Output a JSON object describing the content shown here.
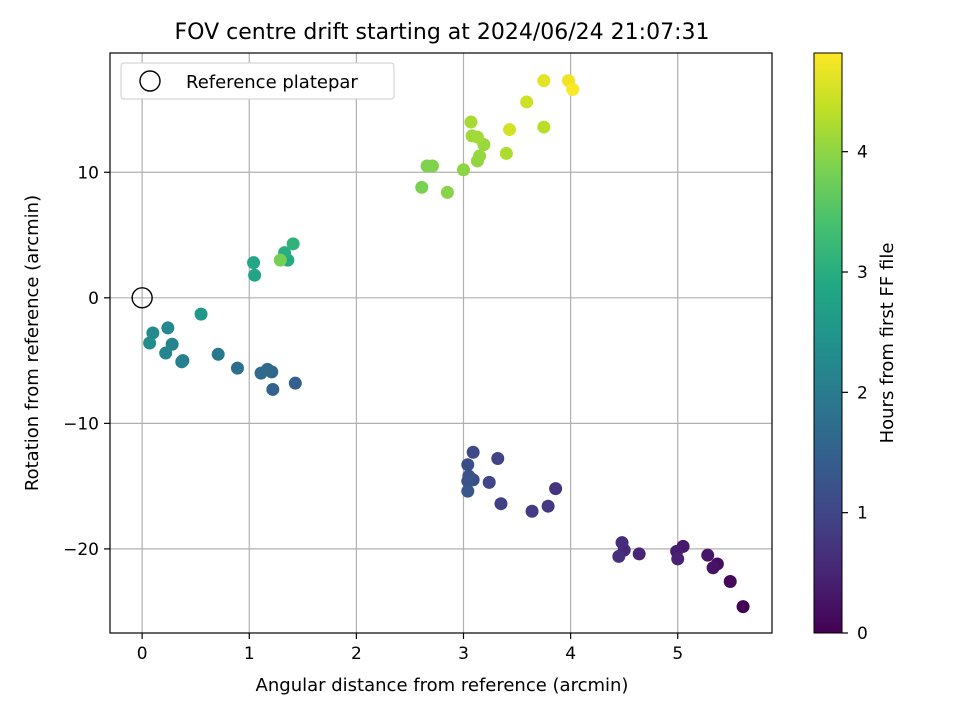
{
  "chart_data": {
    "type": "scatter",
    "title": "FOV centre drift starting at 2024/06/24 21:07:31",
    "xlabel": "Angular distance from reference (arcmin)",
    "ylabel": "Rotation from reference (arcmin)",
    "xlim": [
      -0.3,
      5.88
    ],
    "ylim": [
      -26.7,
      19.5
    ],
    "x_ticks": [
      0,
      1,
      2,
      3,
      4,
      5
    ],
    "y_ticks": [
      -20,
      -10,
      0,
      10
    ],
    "grid": true,
    "legend": {
      "placement": "upper-left",
      "entries": [
        "Reference platepar"
      ]
    },
    "reference_point": {
      "x": 0,
      "y": 0,
      "label": "Reference platepar"
    },
    "colorbar": {
      "label": "Hours from first FF file",
      "range": [
        0,
        4.82
      ],
      "ticks": [
        0,
        1,
        2,
        3,
        4
      ],
      "colormap": "viridis"
    },
    "points": [
      {
        "x": 5.61,
        "y": -24.6,
        "c": 0.02
      },
      {
        "x": 5.49,
        "y": -22.6,
        "c": 0.1
      },
      {
        "x": 5.37,
        "y": -21.2,
        "c": 0.18
      },
      {
        "x": 5.33,
        "y": -21.5,
        "c": 0.25
      },
      {
        "x": 5.28,
        "y": -20.5,
        "c": 0.3
      },
      {
        "x": 5.05,
        "y": -19.8,
        "c": 0.35
      },
      {
        "x": 4.99,
        "y": -20.2,
        "c": 0.4
      },
      {
        "x": 5.0,
        "y": -20.8,
        "c": 0.45
      },
      {
        "x": 4.64,
        "y": -20.4,
        "c": 0.5
      },
      {
        "x": 4.5,
        "y": -20.1,
        "c": 0.55
      },
      {
        "x": 4.48,
        "y": -19.5,
        "c": 0.6
      },
      {
        "x": 4.45,
        "y": -20.6,
        "c": 0.65
      },
      {
        "x": 3.86,
        "y": -15.2,
        "c": 0.72
      },
      {
        "x": 3.79,
        "y": -16.6,
        "c": 0.78
      },
      {
        "x": 3.64,
        "y": -17.0,
        "c": 0.84
      },
      {
        "x": 3.35,
        "y": -16.4,
        "c": 0.9
      },
      {
        "x": 3.32,
        "y": -12.8,
        "c": 0.95
      },
      {
        "x": 3.24,
        "y": -14.7,
        "c": 1.0
      },
      {
        "x": 3.09,
        "y": -12.3,
        "c": 1.05
      },
      {
        "x": 3.09,
        "y": -14.5,
        "c": 1.1
      },
      {
        "x": 3.04,
        "y": -13.3,
        "c": 1.15
      },
      {
        "x": 3.05,
        "y": -14.2,
        "c": 1.2
      },
      {
        "x": 3.04,
        "y": -14.6,
        "c": 1.25
      },
      {
        "x": 3.04,
        "y": -15.4,
        "c": 1.3
      },
      {
        "x": 1.43,
        "y": -6.8,
        "c": 1.45
      },
      {
        "x": 1.22,
        "y": -7.3,
        "c": 1.52
      },
      {
        "x": 1.21,
        "y": -5.9,
        "c": 1.58
      },
      {
        "x": 1.17,
        "y": -5.7,
        "c": 1.63
      },
      {
        "x": 1.11,
        "y": -6.0,
        "c": 1.68
      },
      {
        "x": 0.89,
        "y": -5.6,
        "c": 1.78
      },
      {
        "x": 0.71,
        "y": -4.5,
        "c": 1.92
      },
      {
        "x": 0.38,
        "y": -5.0,
        "c": 2.02
      },
      {
        "x": 0.37,
        "y": -5.1,
        "c": 2.08
      },
      {
        "x": 0.28,
        "y": -3.7,
        "c": 2.15
      },
      {
        "x": 0.22,
        "y": -4.4,
        "c": 2.2
      },
      {
        "x": 0.24,
        "y": -2.4,
        "c": 2.25
      },
      {
        "x": 0.1,
        "y": -2.8,
        "c": 2.3
      },
      {
        "x": 0.07,
        "y": -3.6,
        "c": 2.35
      },
      {
        "x": 0.55,
        "y": -1.3,
        "c": 2.55
      },
      {
        "x": 1.05,
        "y": 1.8,
        "c": 2.8
      },
      {
        "x": 1.04,
        "y": 2.8,
        "c": 2.85
      },
      {
        "x": 1.36,
        "y": 3.0,
        "c": 2.92
      },
      {
        "x": 1.33,
        "y": 3.6,
        "c": 3.02
      },
      {
        "x": 1.41,
        "y": 4.3,
        "c": 3.1
      },
      {
        "x": 1.29,
        "y": 3.0,
        "c": 3.8
      },
      {
        "x": 2.61,
        "y": 8.8,
        "c": 3.85
      },
      {
        "x": 2.66,
        "y": 10.5,
        "c": 3.88
      },
      {
        "x": 2.71,
        "y": 10.5,
        "c": 3.9
      },
      {
        "x": 2.85,
        "y": 8.4,
        "c": 3.95
      },
      {
        "x": 3.0,
        "y": 10.2,
        "c": 4.0
      },
      {
        "x": 3.13,
        "y": 10.9,
        "c": 4.02
      },
      {
        "x": 3.15,
        "y": 11.3,
        "c": 4.05
      },
      {
        "x": 3.19,
        "y": 12.2,
        "c": 4.08
      },
      {
        "x": 3.08,
        "y": 12.9,
        "c": 4.12
      },
      {
        "x": 3.13,
        "y": 12.8,
        "c": 4.15
      },
      {
        "x": 3.07,
        "y": 14.0,
        "c": 4.18
      },
      {
        "x": 3.4,
        "y": 11.5,
        "c": 4.22
      },
      {
        "x": 3.75,
        "y": 13.6,
        "c": 4.3
      },
      {
        "x": 3.59,
        "y": 15.6,
        "c": 4.45
      },
      {
        "x": 3.43,
        "y": 13.4,
        "c": 4.5
      },
      {
        "x": 3.75,
        "y": 17.3,
        "c": 4.62
      },
      {
        "x": 3.98,
        "y": 17.3,
        "c": 4.72
      },
      {
        "x": 4.02,
        "y": 16.6,
        "c": 4.8
      }
    ]
  }
}
